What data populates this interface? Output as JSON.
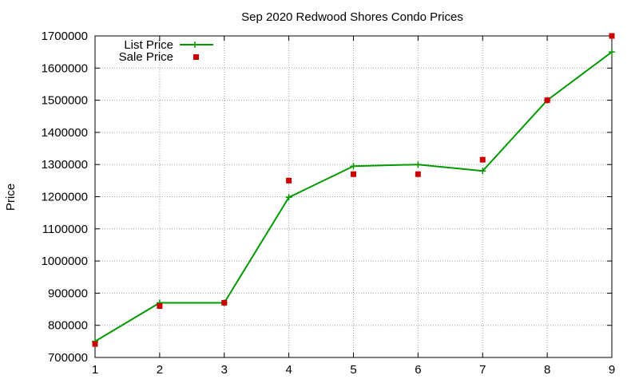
{
  "chart_data": {
    "type": "line",
    "title": "Sep 2020 Redwood Shores Condo Prices",
    "xlabel": "",
    "ylabel": "Price",
    "xlim": [
      1,
      9
    ],
    "ylim": [
      700000,
      1700000
    ],
    "x_ticks": [
      1,
      2,
      3,
      4,
      5,
      6,
      7,
      8,
      9
    ],
    "y_ticks": [
      700000,
      800000,
      900000,
      1000000,
      1100000,
      1200000,
      1300000,
      1400000,
      1500000,
      1600000,
      1700000
    ],
    "grid": true,
    "legend_position": "top-left",
    "series": [
      {
        "name": "List Price",
        "style": "lines+plus-markers",
        "color": "#009900",
        "x": [
          1,
          2,
          3,
          4,
          5,
          6,
          7,
          8,
          9
        ],
        "values": [
          750000,
          870000,
          870000,
          1198000,
          1295000,
          1300000,
          1280000,
          1500000,
          1650000
        ]
      },
      {
        "name": "Sale Price",
        "style": "square-markers",
        "color": "#cc0000",
        "x": [
          1,
          2,
          3,
          4,
          5,
          6,
          7,
          8,
          9
        ],
        "values": [
          742000,
          860000,
          870000,
          1250000,
          1270000,
          1270000,
          1315000,
          1500000,
          1700000
        ]
      }
    ]
  }
}
